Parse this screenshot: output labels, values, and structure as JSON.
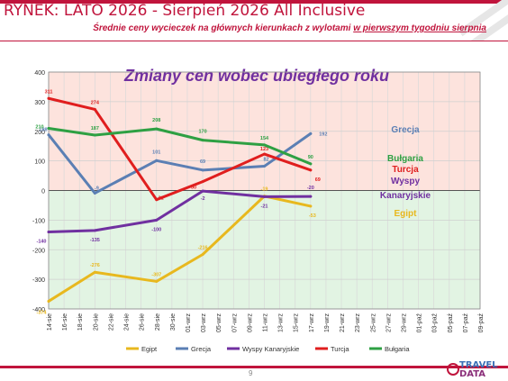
{
  "header": {
    "title": "RYNEK: LATO 2026 - Sierpień 2026 All Inclusive",
    "subtitle_prefix": "Średnie ceny wycieczek na głównych kierunkach  z wylotami ",
    "subtitle_underlined": "w pierwszym tygodniu sierpnia"
  },
  "footer": {
    "page_number": "9",
    "logo_line1": "TRAVEL",
    "logo_line2": "DATA"
  },
  "colors": {
    "brand": "#c0143c",
    "zone_positive": "#fde3dd",
    "zone_negative": "#e2f4e3"
  },
  "chart_data": {
    "type": "line",
    "title": "Zmiany cen wobec ubiegłego roku",
    "x": [
      "14-sie",
      "16-sie",
      "18-sie",
      "20-sie",
      "22-sie",
      "24-sie",
      "26-sie",
      "28-sie",
      "30-sie",
      "01-wrz",
      "03-wrz",
      "05-wrz",
      "07-wrz",
      "09-wrz",
      "11-wrz",
      "13-wrz",
      "15-wrz",
      "17-wrz",
      "19-wrz",
      "21-wrz",
      "23-wrz",
      "25-wrz",
      "27-wrz",
      "29-wrz",
      "01-paź",
      "03-paź",
      "05-paź",
      "07-paź",
      "09-paź"
    ],
    "ylim": [
      -400,
      400
    ],
    "yticks": [
      -400,
      -300,
      -200,
      -100,
      0,
      100,
      200,
      300,
      400
    ],
    "grid": true,
    "legend_position": "bottom",
    "series": [
      {
        "name": "Egipt",
        "color": "#e8b81e",
        "points": [
          [
            0,
            -374
          ],
          [
            3,
            -276
          ],
          [
            7,
            -307
          ],
          [
            10,
            -216
          ],
          [
            14,
            -19
          ],
          [
            17,
            -53
          ]
        ],
        "labels": [
          "-374",
          "-276",
          "-307",
          "-216",
          "-19",
          "-53"
        ],
        "end_label": "Egipt"
      },
      {
        "name": "Grecja",
        "color": "#5b7fb4",
        "points": [
          [
            0,
            188
          ],
          [
            3,
            -9
          ],
          [
            7,
            101
          ],
          [
            10,
            69
          ],
          [
            14,
            82
          ],
          [
            17,
            192
          ]
        ],
        "labels": [
          "188",
          "-9",
          "101",
          "69",
          "82",
          "192"
        ],
        "end_label": "Grecja"
      },
      {
        "name": "Wyspy Kanaryjskie",
        "color": "#7030a0",
        "points": [
          [
            0,
            -140
          ],
          [
            3,
            -135
          ],
          [
            7,
            -100
          ],
          [
            10,
            -2
          ],
          [
            14,
            -21
          ],
          [
            17,
            -20
          ]
        ],
        "labels": [
          "-140",
          "-135",
          "-100",
          "-2",
          "-21",
          "-20"
        ],
        "end_label": "Wyspy Kanaryjskie"
      },
      {
        "name": "Turcja",
        "color": "#e01e1e",
        "points": [
          [
            0,
            311
          ],
          [
            3,
            274
          ],
          [
            7,
            -31
          ],
          [
            10,
            30
          ],
          [
            14,
            123
          ],
          [
            17,
            69
          ]
        ],
        "labels": [
          "311",
          "274",
          "-31",
          "30",
          "123",
          "69"
        ],
        "end_label": "Turcja"
      },
      {
        "name": "Bułgaria",
        "color": "#2ea043",
        "points": [
          [
            0,
            210
          ],
          [
            3,
            187
          ],
          [
            7,
            208
          ],
          [
            10,
            170
          ],
          [
            14,
            154
          ],
          [
            17,
            90
          ]
        ],
        "labels": [
          "210",
          "187",
          "208",
          "170",
          "154",
          "90"
        ],
        "end_label": "Bułgaria"
      }
    ]
  }
}
